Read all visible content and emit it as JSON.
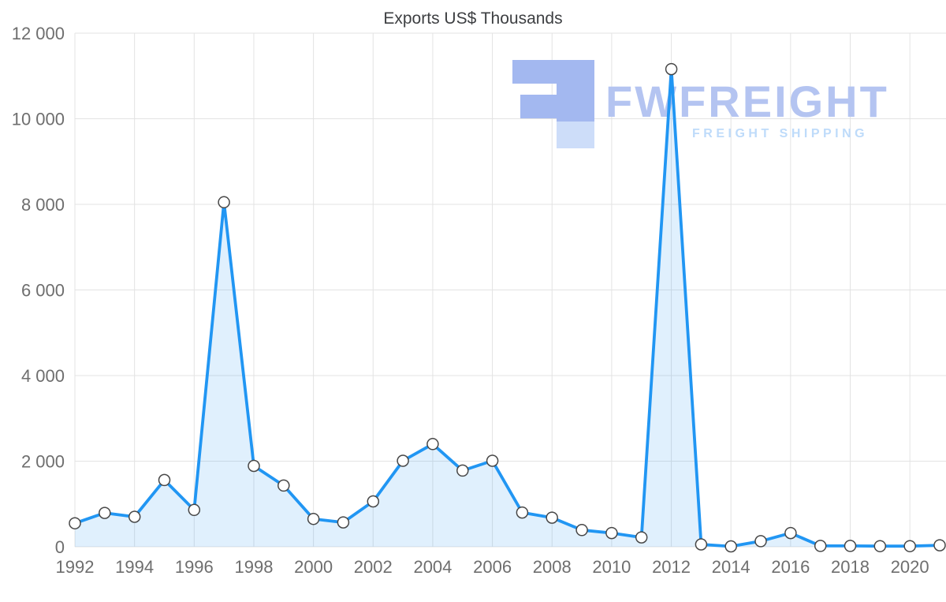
{
  "chart_data": {
    "type": "area",
    "title": "Exports US$ Thousands",
    "x": [
      1992,
      1993,
      1994,
      1995,
      1996,
      1997,
      1998,
      1999,
      2000,
      2001,
      2002,
      2003,
      2004,
      2005,
      2006,
      2007,
      2008,
      2009,
      2010,
      2011,
      2012,
      2013,
      2014,
      2015,
      2016,
      2017,
      2018,
      2019,
      2020,
      2021
    ],
    "values": [
      550,
      790,
      700,
      1560,
      860,
      8050,
      1890,
      1430,
      650,
      570,
      1060,
      2010,
      2400,
      1780,
      2010,
      800,
      680,
      390,
      320,
      220,
      11160,
      55,
      10,
      130,
      320,
      20,
      20,
      15,
      15,
      35
    ],
    "xlim": [
      1992,
      2021
    ],
    "ylim": [
      0,
      12000
    ],
    "yticks": [
      0,
      2000,
      4000,
      6000,
      8000,
      10000,
      12000
    ],
    "ytick_labels": [
      "0",
      "2 000",
      "4 000",
      "6 000",
      "8 000",
      "10 000",
      "12 000"
    ],
    "xticks": [
      1992,
      1994,
      1996,
      1998,
      2000,
      2002,
      2004,
      2006,
      2008,
      2010,
      2012,
      2014,
      2016,
      2018,
      2020
    ],
    "xtick_labels": [
      "1992",
      "1994",
      "1996",
      "1998",
      "2000",
      "2002",
      "2004",
      "2006",
      "2008",
      "2010",
      "2012",
      "2014",
      "2016",
      "2018",
      "2020"
    ],
    "grid": true,
    "legend": "none",
    "style": {
      "line_color": "#2196f3",
      "area_fill_color": "#2196f3",
      "area_fill_opacity": 0.14,
      "marker_fill": "#ffffff",
      "marker_stroke": "#474747",
      "grid_color": "#e3e3e3",
      "tick_label_color": "#6e6e6e",
      "title_color": "#3d3f42"
    }
  },
  "watermark": {
    "brand": "FWFREIGHT",
    "tagline": "FREIGHT SHIPPING",
    "logo_color": "#a3b8f0",
    "logo_color_light": "#cdddf9",
    "brand_color": "#b4c4f1",
    "tagline_color": "#bedbfa"
  }
}
